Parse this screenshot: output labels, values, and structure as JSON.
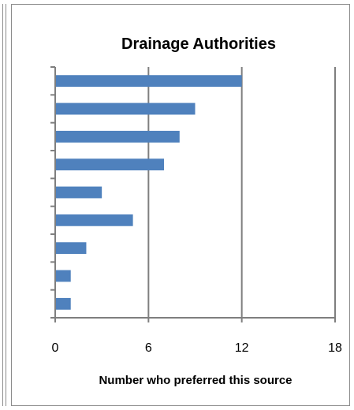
{
  "chart_data": {
    "type": "bar",
    "orientation": "horizontal",
    "title": "Drainage Authorities",
    "xlabel": "Number who preferred this source",
    "ylabel": "",
    "categories": [
      "",
      "",
      "",
      "",
      "",
      "",
      "",
      "",
      ""
    ],
    "values": [
      12,
      9,
      8,
      7,
      3,
      5,
      2,
      1,
      1
    ],
    "xlim": [
      0,
      18
    ],
    "xticks": [
      0,
      6,
      12,
      18
    ],
    "xtick_labels": [
      "0",
      "6",
      "12",
      "18"
    ],
    "grid": "vertical major gridlines",
    "legend": "none",
    "bar_color": "#4f81bd",
    "grid_color": "#7f7f7f"
  }
}
